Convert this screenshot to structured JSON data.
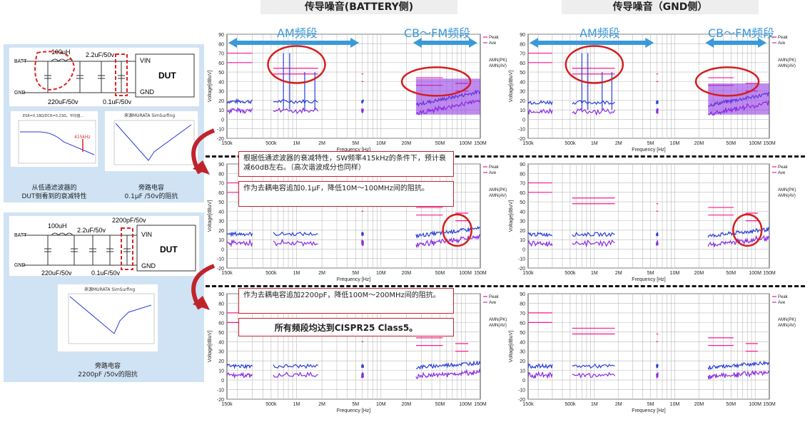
{
  "headers": {
    "battery": "传导噪音(BATTERY侧)",
    "gnd": "传导噪音（GND侧）"
  },
  "bands": {
    "am": "AM频段",
    "cbfm": "CB～FM频段"
  },
  "schematic1": {
    "labels": [
      "100uH",
      "2.2uF/50v",
      "BATT",
      "GND",
      "220uF/50v",
      "0.1uF/50v",
      "VIN",
      "DUT",
      "GND"
    ]
  },
  "schematic2": {
    "labels": [
      "2200pF/50v",
      "100uH",
      "2.2uF/50v",
      "BATT",
      "GND",
      "220uF/50v",
      "0.1uF/50v",
      "VIN",
      "DUT",
      "GND"
    ]
  },
  "mini_chart1": {
    "caption": "从低通滤波器的\nDUT侧看到的衰减特性",
    "title": "ESR=0.18Ω/DCR=0.23Ω，平均值…",
    "marker": "415kHz"
  },
  "mini_chart2": {
    "caption": "旁路电容\n0.1μF /50v的阻抗",
    "title": "来源MURATA  SimSurfing"
  },
  "mini_chart3": {
    "caption": "旁路电容\n2200pF /50v的阻抗",
    "title": "来源MURATA  SimSurfing"
  },
  "notes": {
    "note1": "根据低通滤波器的衰减特性，SW频率415kHz的条件下，预计衰减60dB左右。（高次谐波成分也同样）",
    "note2": "作为去耦电容追加0.1μF，降低10M～100MHz间的阻抗。",
    "note3": "作为去耦电容追加2200pF，降低100M～200MHz间的阻抗。",
    "note4": "所有频段均达到CISPR25 Class5。"
  },
  "plot_text": {
    "ylabel": "Voltage[dBuV]",
    "xlabel": "Frequency [Hz]",
    "legend": [
      "Peak",
      "Ave",
      "AMN(PK)",
      "AMN(AV)"
    ]
  },
  "chart_data": {
    "type": "line",
    "x_ticks": [
      "150k",
      "500k",
      "1M",
      "2M",
      "5M",
      "10M",
      "20M",
      "50M",
      "100M",
      "150M"
    ],
    "y_ticks": [
      90,
      80,
      70,
      60,
      50,
      40,
      30,
      20,
      10,
      0,
      -10,
      -20
    ],
    "ylim": [
      -20,
      90
    ],
    "grid": true,
    "legend_position": "right",
    "colors": {
      "peak": "#ff3fa0",
      "ave": "#c060d0",
      "amn_pk": "#2a3ed8",
      "amn_av": "#8a2be2",
      "limit": "#ff1493"
    },
    "plots": [
      {
        "row": 1,
        "side": "BATTERY",
        "noise_level_dBuV": 35
      },
      {
        "row": 1,
        "side": "GND",
        "noise_level_dBuV": 30
      },
      {
        "row": 2,
        "side": "BATTERY",
        "noise_level_dBuV": 20
      },
      {
        "row": 2,
        "side": "GND",
        "noise_level_dBuV": 18
      },
      {
        "row": 3,
        "side": "BATTERY",
        "noise_level_dBuV": 12
      },
      {
        "row": 3,
        "side": "GND",
        "noise_level_dBuV": 12
      }
    ]
  }
}
